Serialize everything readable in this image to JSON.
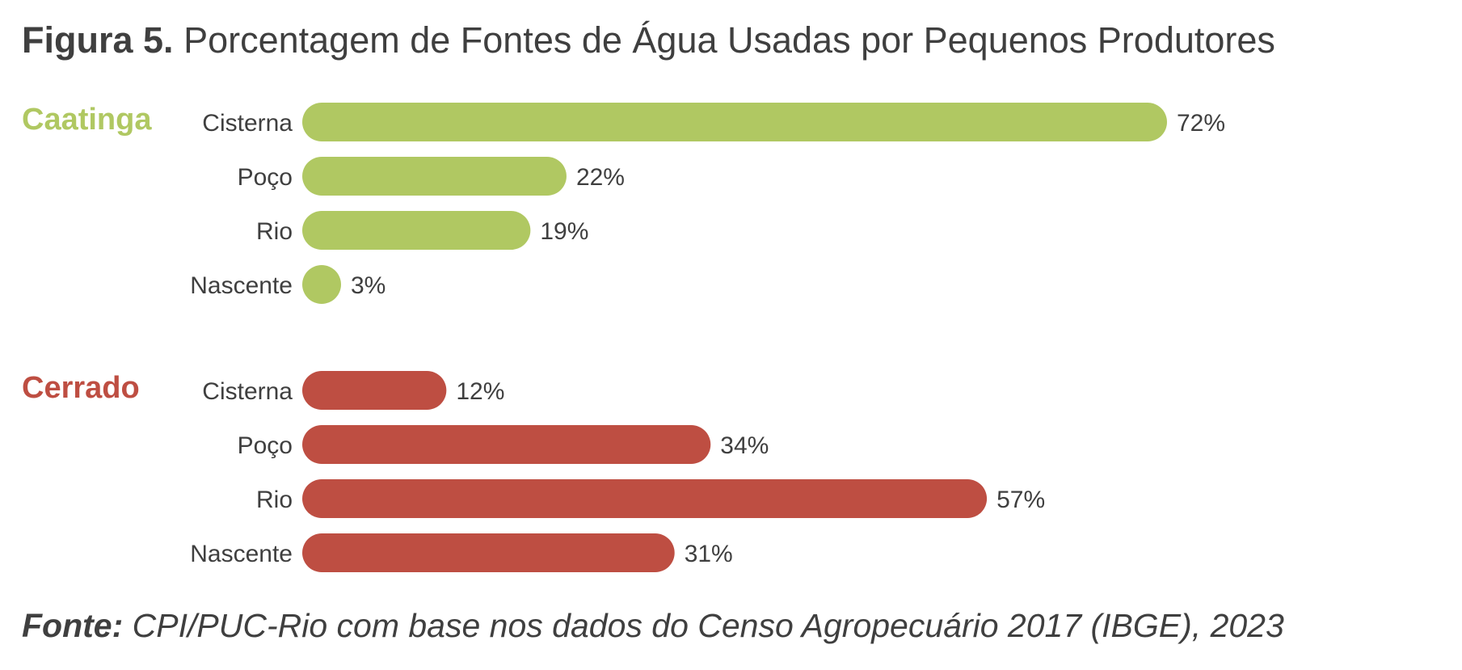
{
  "figure": {
    "title_prefix": "Figura 5.",
    "title_text": "Porcentagem de Fontes de Água Usadas por Pequenos Produtores",
    "source_prefix": "Fonte:",
    "source_text": "CPI/PUC-Rio com base nos dados do Censo Agropecuário 2017 (IBGE), 2023"
  },
  "chart_data": {
    "type": "bar",
    "orientation": "horizontal",
    "value_suffix": "%",
    "xlim": [
      0,
      72
    ],
    "grid": false,
    "groups": [
      {
        "name": "Caatinga",
        "color": "#b0c862",
        "categories": [
          "Cisterna",
          "Poço",
          "Rio",
          "Nascente"
        ],
        "values": [
          72,
          22,
          19,
          3
        ]
      },
      {
        "name": "Cerrado",
        "color": "#be4e42",
        "categories": [
          "Cisterna",
          "Poço",
          "Rio",
          "Nascente"
        ],
        "values": [
          12,
          34,
          57,
          31
        ]
      }
    ]
  }
}
